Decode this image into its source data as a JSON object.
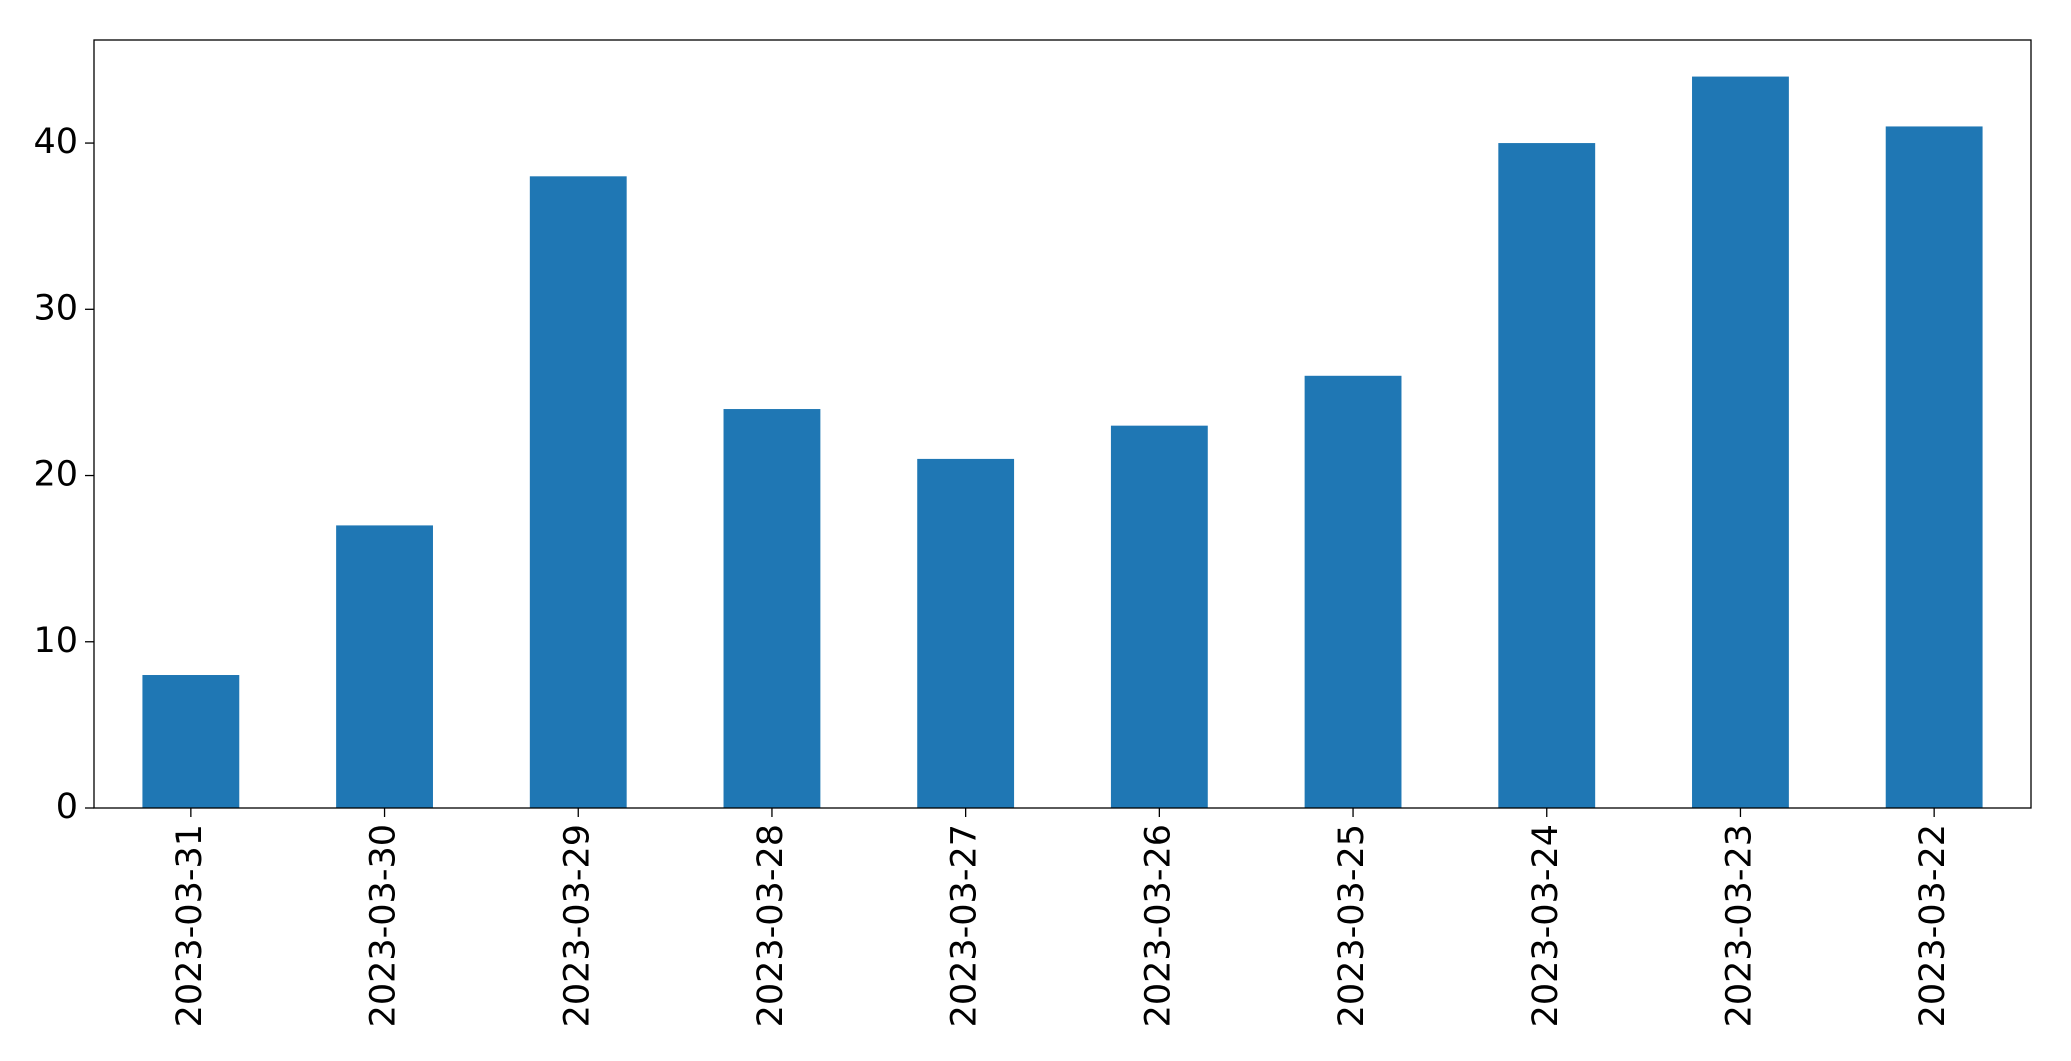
{
  "chart_data": {
    "type": "bar",
    "categories": [
      "2023-03-31",
      "2023-03-30",
      "2023-03-29",
      "2023-03-28",
      "2023-03-27",
      "2023-03-26",
      "2023-03-25",
      "2023-03-24",
      "2023-03-23",
      "2023-03-22"
    ],
    "values": [
      8,
      17,
      38,
      24,
      21,
      23,
      26,
      40,
      44,
      41
    ],
    "color": "#1f77b4",
    "ylim": [
      0,
      46.2
    ],
    "yticks": [
      0,
      10,
      20,
      30,
      40
    ],
    "grid": false
  }
}
